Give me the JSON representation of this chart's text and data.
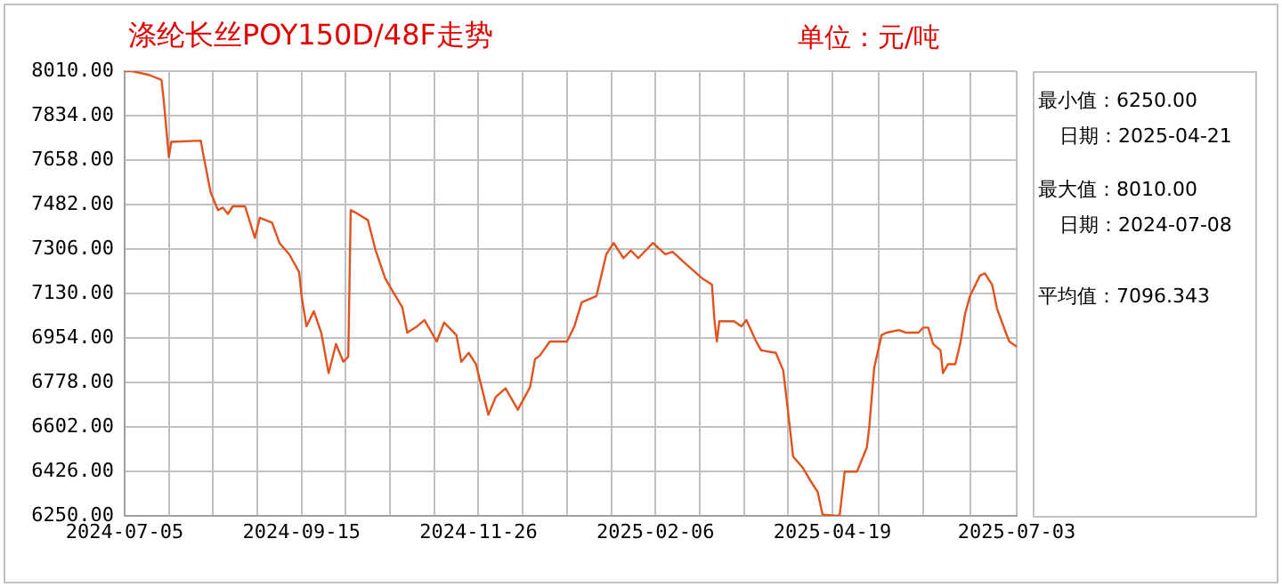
{
  "chart_data": {
    "type": "line",
    "title": "涤纶长丝POY150D/48F走势",
    "subtitle": "单位：元/吨",
    "x": [
      "2024-07-05",
      "2024-07-08",
      "2024-07-15",
      "2024-07-20",
      "2024-07-21",
      "2024-07-23",
      "2024-07-24",
      "2024-08-05",
      "2024-08-06",
      "2024-08-09",
      "2024-08-12",
      "2024-08-14",
      "2024-08-16",
      "2024-08-18",
      "2024-08-23",
      "2024-08-27",
      "2024-08-29",
      "2024-09-03",
      "2024-09-06",
      "2024-09-10",
      "2024-09-14",
      "2024-09-15",
      "2024-09-17",
      "2024-09-20",
      "2024-09-23",
      "2024-09-26",
      "2024-09-29",
      "2024-10-02",
      "2024-10-04",
      "2024-10-05",
      "2024-10-07",
      "2024-10-12",
      "2024-10-15",
      "2024-10-19",
      "2024-10-22",
      "2024-10-26",
      "2024-10-28",
      "2024-11-01",
      "2024-11-04",
      "2024-11-09",
      "2024-11-12",
      "2024-11-17",
      "2024-11-19",
      "2024-11-22",
      "2024-11-25",
      "2024-11-28",
      "2024-11-30",
      "2024-12-03",
      "2024-12-07",
      "2024-12-12",
      "2024-12-17",
      "2024-12-19",
      "2024-12-21",
      "2024-12-25",
      "2025-01-01",
      "2025-01-04",
      "2025-01-07",
      "2025-01-13",
      "2025-01-17",
      "2025-01-20",
      "2025-01-24",
      "2025-01-27",
      "2025-01-30",
      "2025-02-05",
      "2025-02-10",
      "2025-02-13",
      "2025-02-18",
      "2025-02-25",
      "2025-03-01",
      "2025-03-02",
      "2025-03-03",
      "2025-03-04",
      "2025-03-10",
      "2025-03-13",
      "2025-03-15",
      "2025-03-19",
      "2025-03-21",
      "2025-03-27",
      "2025-03-30",
      "2025-04-01",
      "2025-04-03",
      "2025-04-07",
      "2025-04-10",
      "2025-04-13",
      "2025-04-15",
      "2025-04-21",
      "2025-04-22",
      "2025-04-24",
      "2025-04-29",
      "2025-05-03",
      "2025-05-04",
      "2025-05-06",
      "2025-05-09",
      "2025-05-11",
      "2025-05-16",
      "2025-05-19",
      "2025-05-24",
      "2025-05-26",
      "2025-05-28",
      "2025-05-30",
      "2025-06-02",
      "2025-06-03",
      "2025-06-05",
      "2025-06-08",
      "2025-06-10",
      "2025-06-12",
      "2025-06-14",
      "2025-06-18",
      "2025-06-20",
      "2025-06-23",
      "2025-06-25",
      "2025-06-28",
      "2025-06-30",
      "2025-07-03"
    ],
    "series": [
      {
        "color": "#e0531f",
        "values": [
          8010,
          8010,
          7995,
          7975,
          7885,
          7670,
          7730,
          7735,
          7680,
          7530,
          7460,
          7470,
          7445,
          7475,
          7475,
          7350,
          7430,
          7410,
          7330,
          7285,
          7215,
          7120,
          7000,
          7060,
          6975,
          6815,
          6930,
          6860,
          6880,
          7460,
          7450,
          7420,
          7305,
          7190,
          7140,
          7075,
          6975,
          7000,
          7025,
          6940,
          7015,
          6965,
          6860,
          6895,
          6850,
          6730,
          6650,
          6720,
          6755,
          6670,
          6760,
          6870,
          6885,
          6940,
          6940,
          7000,
          7095,
          7120,
          7285,
          7330,
          7270,
          7300,
          7270,
          7330,
          7285,
          7295,
          7250,
          7190,
          7165,
          7025,
          6940,
          7020,
          7020,
          7000,
          7025,
          6940,
          6905,
          6895,
          6825,
          6660,
          6485,
          6440,
          6390,
          6345,
          6255,
          6250,
          6255,
          6425,
          6425,
          6520,
          6600,
          6835,
          6965,
          6975,
          6985,
          6975,
          6975,
          6995,
          6995,
          6930,
          6905,
          6815,
          6850,
          6850,
          6930,
          7050,
          7120,
          7200,
          7210,
          7165,
          7070,
          6990,
          6940,
          6920
        ]
      }
    ],
    "xlim": [
      "2024-07-05",
      "2025-07-03"
    ],
    "xticks": [
      "2024-07-05",
      {
        "value": "2024-07-23",
        "label": null
      },
      {
        "value": "2024-08-10",
        "label": null
      },
      {
        "value": "2024-08-28",
        "label": null
      },
      "2024-09-15",
      {
        "value": "2024-10-03",
        "label": null
      },
      {
        "value": "2024-10-21",
        "label": null
      },
      {
        "value": "2024-11-08",
        "label": null
      },
      "2024-11-26",
      {
        "value": "2024-12-14",
        "label": null
      },
      {
        "value": "2025-01-01",
        "label": null
      },
      {
        "value": "2025-01-19",
        "label": null
      },
      "2025-02-06",
      {
        "value": "2025-02-24",
        "label": null
      },
      {
        "value": "2025-03-14",
        "label": null
      },
      {
        "value": "2025-04-01",
        "label": null
      },
      "2025-04-19",
      {
        "value": "2025-05-08",
        "label": null
      },
      {
        "value": "2025-05-26",
        "label": null
      },
      {
        "value": "2025-06-14",
        "label": null
      },
      "2025-07-03"
    ],
    "ylim": [
      6250,
      8010
    ],
    "yticks": [
      {
        "value": 6250,
        "label": "6250.00"
      },
      {
        "value": 6426,
        "label": "6426.00"
      },
      {
        "value": 6602,
        "label": "6602.00"
      },
      {
        "value": 6778,
        "label": "6778.00"
      },
      {
        "value": 6954,
        "label": "6954.00"
      },
      {
        "value": 7130,
        "label": "7130.00"
      },
      {
        "value": 7306,
        "label": "7306.00"
      },
      {
        "value": 7482,
        "label": "7482.00"
      },
      {
        "value": 7658,
        "label": "7658.00"
      },
      {
        "value": 7834,
        "label": "7834.00"
      },
      {
        "value": 8010,
        "label": "8010.00"
      }
    ],
    "grid": true,
    "legend": false,
    "marker": "none",
    "line_style": "solid",
    "annotations": [
      "最小值：6250.00",
      "日期：2025-04-21",
      "最大值：8010.00",
      "日期：2024-07-08",
      "平均值：7096.343"
    ]
  }
}
